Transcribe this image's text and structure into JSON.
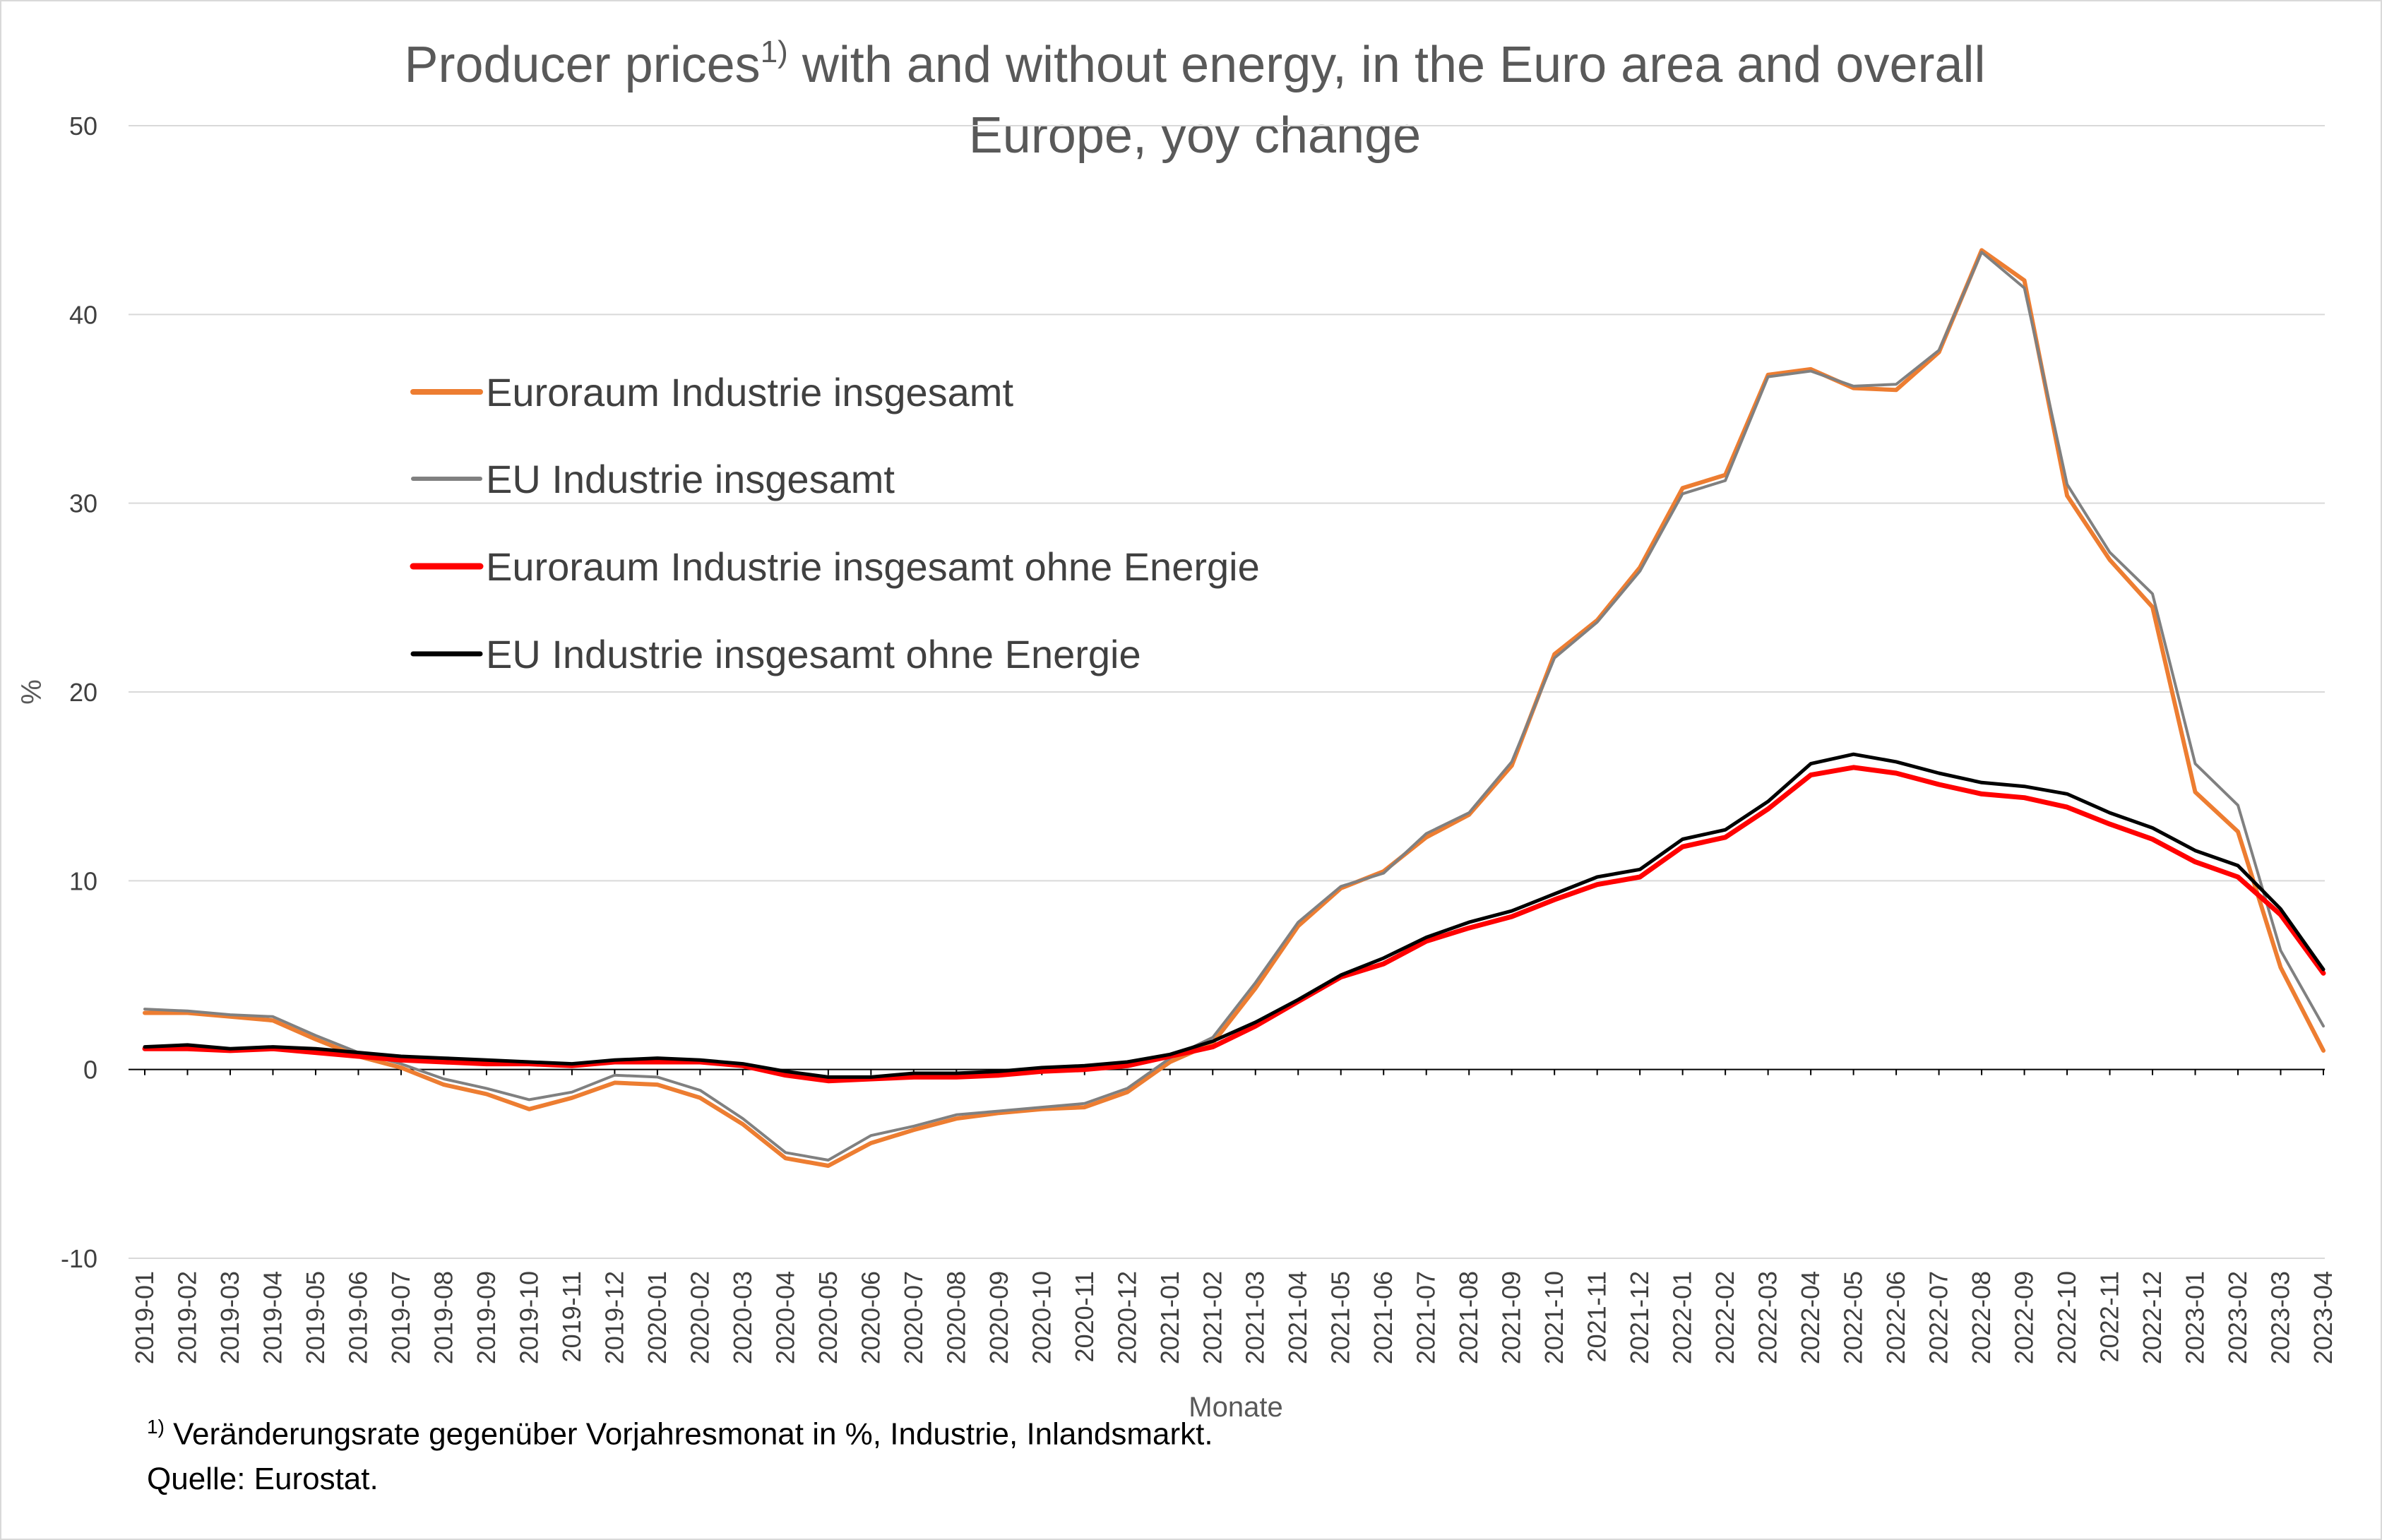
{
  "chart_data": {
    "type": "line",
    "title": "Producer prices",
    "title_superscript": "1)",
    "title_rest": " with and without energy, in the Euro area and overall",
    "title_line2": "Europe, yoy change",
    "xlabel": "Monate",
    "ylabel": "%",
    "ylim": [
      -10,
      50
    ],
    "yticks": [
      -10,
      0,
      10,
      20,
      30,
      40,
      50
    ],
    "grid": true,
    "legend_position": "top-left",
    "categories": [
      "2019-01",
      "2019-02",
      "2019-03",
      "2019-04",
      "2019-05",
      "2019-06",
      "2019-07",
      "2019-08",
      "2019-09",
      "2019-10",
      "2019-11",
      "2019-12",
      "2020-01",
      "2020-02",
      "2020-03",
      "2020-04",
      "2020-05",
      "2020-06",
      "2020-07",
      "2020-08",
      "2020-09",
      "2020-10",
      "2020-11",
      "2020-12",
      "2021-01",
      "2021-02",
      "2021-03",
      "2021-04",
      "2021-05",
      "2021-06",
      "2021-07",
      "2021-08",
      "2021-09",
      "2021-10",
      "2021-11",
      "2021-12",
      "2022-01",
      "2022-02",
      "2022-03",
      "2022-04",
      "2022-05",
      "2022-06",
      "2022-07",
      "2022-08",
      "2022-09",
      "2022-10",
      "2022-11",
      "2022-12",
      "2023-01",
      "2023-02",
      "2023-03",
      "2023-04"
    ],
    "series": [
      {
        "name": "Euroraum Industrie insgesamt",
        "color": "#ED7D31",
        "width": 6,
        "values": [
          3.0,
          3.0,
          2.8,
          2.6,
          1.6,
          0.7,
          0.1,
          -0.8,
          -1.3,
          -2.1,
          -1.5,
          -0.7,
          -0.8,
          -1.5,
          -2.9,
          -4.7,
          -5.1,
          -3.9,
          -3.2,
          -2.6,
          -2.3,
          -2.1,
          -2.0,
          -1.2,
          0.4,
          1.4,
          4.3,
          7.6,
          9.6,
          10.5,
          12.3,
          13.5,
          16.1,
          22.0,
          23.8,
          26.6,
          30.8,
          31.5,
          36.8,
          37.1,
          36.1,
          36.0,
          38.0,
          43.4,
          41.8,
          30.4,
          27.0,
          24.5,
          14.7,
          12.6,
          5.4,
          1.0
        ]
      },
      {
        "name": "EU Industrie insgesamt",
        "color": "#808080",
        "width": 4,
        "values": [
          3.2,
          3.1,
          2.9,
          2.8,
          1.8,
          0.9,
          0.3,
          -0.5,
          -1.0,
          -1.6,
          -1.2,
          -0.3,
          -0.4,
          -1.1,
          -2.6,
          -4.4,
          -4.8,
          -3.5,
          -3.0,
          -2.4,
          -2.2,
          -2.0,
          -1.8,
          -1.0,
          0.6,
          1.7,
          4.6,
          7.8,
          9.7,
          10.4,
          12.5,
          13.6,
          16.3,
          21.8,
          23.7,
          26.4,
          30.5,
          31.2,
          36.7,
          37.0,
          36.2,
          36.3,
          38.1,
          43.3,
          41.4,
          31.0,
          27.4,
          25.2,
          16.2,
          14.0,
          6.3,
          2.3
        ]
      },
      {
        "name": "Euroraum Industrie insgesamt ohne Energie",
        "color": "#FF0000",
        "width": 7,
        "values": [
          1.1,
          1.1,
          1.0,
          1.1,
          0.9,
          0.7,
          0.5,
          0.4,
          0.3,
          0.3,
          0.2,
          0.4,
          0.4,
          0.4,
          0.2,
          -0.3,
          -0.6,
          -0.5,
          -0.4,
          -0.4,
          -0.3,
          -0.1,
          0.0,
          0.2,
          0.7,
          1.2,
          2.3,
          3.6,
          4.9,
          5.6,
          6.8,
          7.5,
          8.1,
          9.0,
          9.8,
          10.2,
          11.8,
          12.3,
          13.8,
          15.6,
          16.0,
          15.7,
          15.1,
          14.6,
          14.4,
          13.9,
          13.0,
          12.2,
          11.0,
          10.2,
          8.2,
          5.1
        ]
      },
      {
        "name": "EU Industrie insgesamt ohne Energie",
        "color": "#000000",
        "width": 5,
        "values": [
          1.2,
          1.3,
          1.1,
          1.2,
          1.1,
          0.9,
          0.7,
          0.6,
          0.5,
          0.4,
          0.3,
          0.5,
          0.6,
          0.5,
          0.3,
          -0.1,
          -0.4,
          -0.4,
          -0.2,
          -0.2,
          -0.1,
          0.1,
          0.2,
          0.4,
          0.8,
          1.5,
          2.5,
          3.7,
          5.0,
          5.9,
          7.0,
          7.8,
          8.4,
          9.3,
          10.2,
          10.6,
          12.2,
          12.7,
          14.2,
          16.2,
          16.7,
          16.3,
          15.7,
          15.2,
          15.0,
          14.6,
          13.6,
          12.8,
          11.6,
          10.8,
          8.5,
          5.3
        ]
      }
    ]
  },
  "footnote": {
    "sup": "1)",
    "line1": " Veränderungsrate gegenüber Vorjahresmonat in %, Industrie, Inlandsmarkt.",
    "line2": "Quelle: Eurostat."
  }
}
